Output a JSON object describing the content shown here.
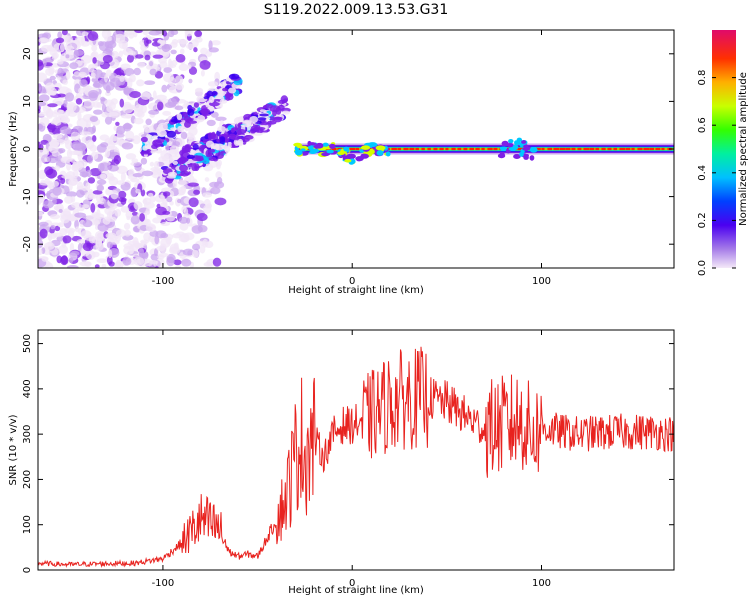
{
  "title": "S119.2022.009.13.53.G31",
  "colors": {
    "snr_line": "#e8231f",
    "frame": "#000000",
    "colormap": [
      "#f2e6f7",
      "#c9a6ef",
      "#7d1fe6",
      "#3a00f0",
      "#0033ff",
      "#00c8ff",
      "#00f090",
      "#33ff00",
      "#d6ff00",
      "#ff9a00",
      "#ff2200",
      "#e0105a"
    ]
  },
  "chart_data": [
    {
      "type": "heatmap",
      "xlabel": "Height of straight line (km)",
      "ylabel": "Frequency (Hz)",
      "xlim": [
        -166,
        170
      ],
      "ylim": [
        -25,
        25
      ],
      "x_ticks": [
        -100,
        0,
        100
      ],
      "y_ticks": [
        -20,
        -10,
        0,
        10,
        20
      ],
      "colorbar": {
        "label": "Normalized spectral amplitude",
        "range": [
          0,
          1
        ],
        "ticks": [
          "0.0",
          "0.2",
          "0.4",
          "0.6",
          "0.8"
        ]
      },
      "features": {
        "noise_region_x": [
          -166,
          -95
        ],
        "rising_branches": [
          {
            "x": [
              -110,
              -60
            ],
            "f": [
              0,
              14
            ]
          },
          {
            "x": [
              -90,
              -35
            ],
            "f": [
              -2,
              9
            ]
          },
          {
            "x": [
              -100,
              -45
            ],
            "f": [
              -6,
              6
            ]
          }
        ],
        "carrier_line": {
          "x": [
            -30,
            170
          ],
          "f": 0
        },
        "dip": {
          "x": 0,
          "f": -2
        }
      }
    },
    {
      "type": "line",
      "xlabel": "Height of straight line (km)",
      "ylabel": "SNR (10 * v/v)",
      "xlim": [
        -166,
        170
      ],
      "ylim": [
        0,
        530
      ],
      "x_ticks": [
        -100,
        0,
        100
      ],
      "y_ticks": [
        0,
        100,
        200,
        300,
        400,
        500
      ],
      "series": [
        {
          "x": [
            -166,
            -150,
            -130,
            -115,
            -100,
            -90,
            -80,
            -75,
            -70,
            -65,
            -60,
            -55,
            -50,
            -45,
            -40,
            -35,
            -30,
            -28,
            -25,
            -20,
            -15,
            -10,
            -5,
            0,
            10,
            20,
            30,
            40,
            50,
            60,
            70,
            80,
            90,
            95,
            100,
            110,
            120,
            140,
            160,
            170
          ],
          "values": [
            15,
            12,
            14,
            15,
            25,
            60,
            110,
            100,
            90,
            40,
            30,
            35,
            30,
            70,
            110,
            160,
            250,
            300,
            260,
            290,
            250,
            300,
            320,
            320,
            340,
            370,
            380,
            380,
            370,
            340,
            310,
            320,
            330,
            300,
            315,
            305,
            300,
            305,
            305,
            300
          ]
        }
      ]
    }
  ]
}
